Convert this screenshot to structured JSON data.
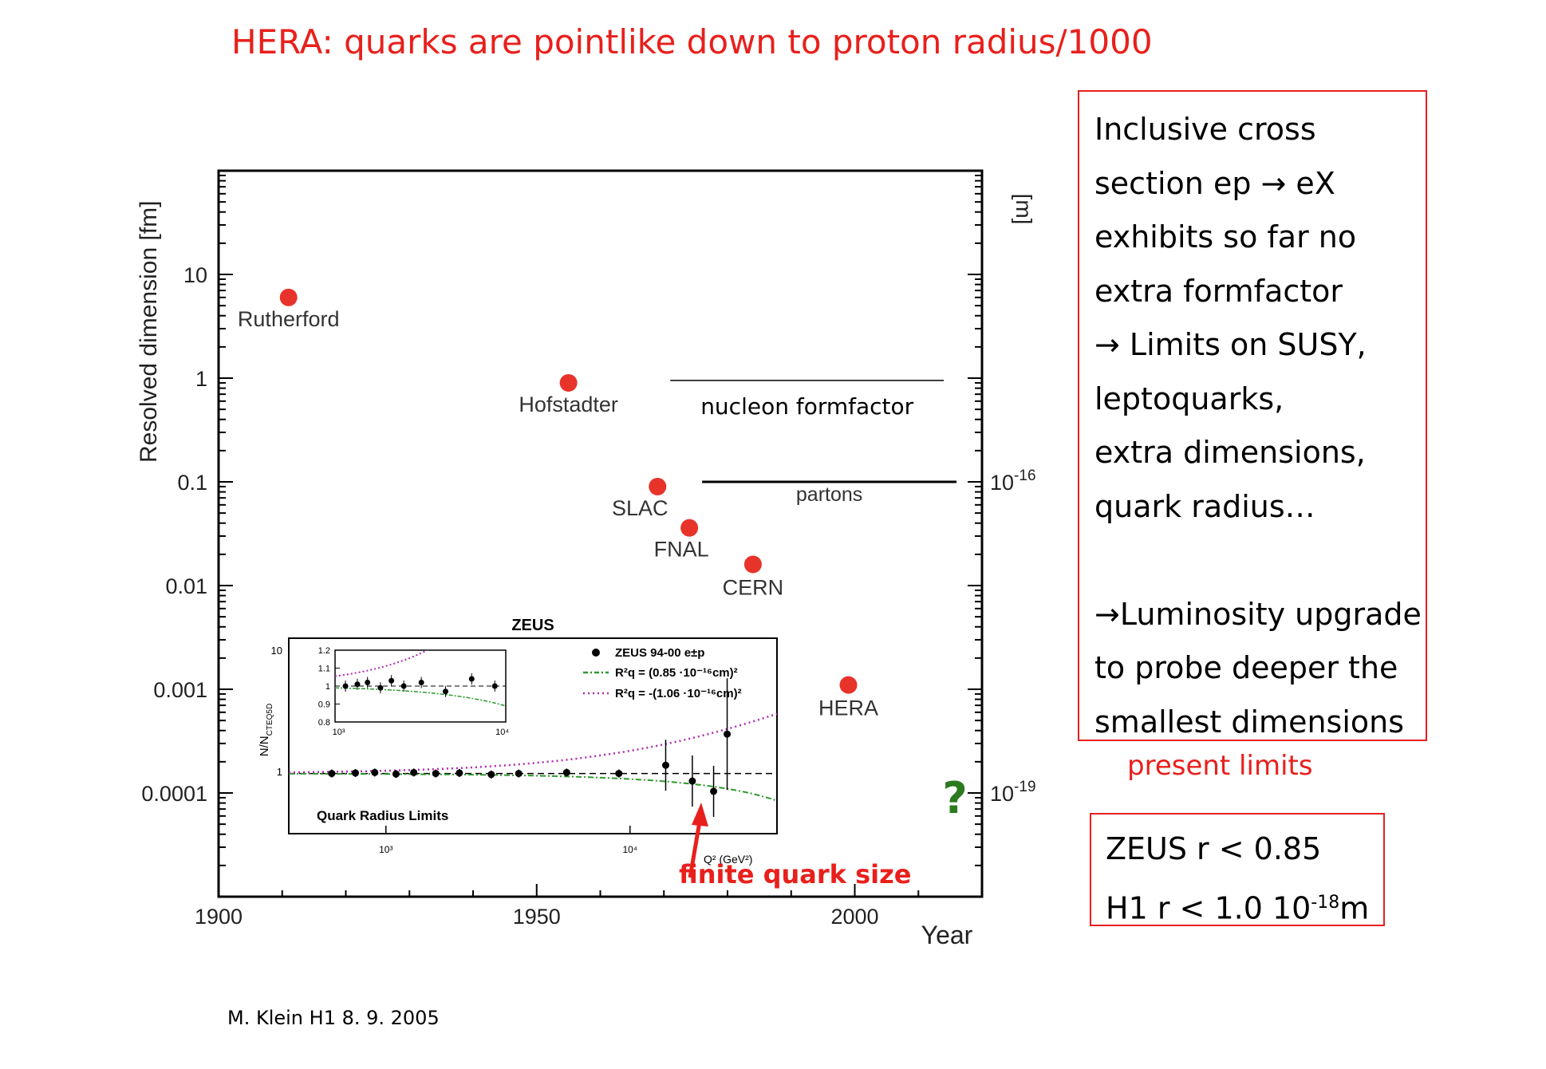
{
  "slide": {
    "title": "HERA: quarks are pointlike  down to  proton radius/1000",
    "footer": "M. Klein  H1 8. 9. 2005"
  },
  "info_box": {
    "lines": [
      "Inclusive cross",
      "section ep → eX",
      "exhibits so far no",
      "extra formfactor",
      "→ Limits on SUSY,",
      "leptoquarks,",
      "extra dimensions,",
      "quark radius…",
      "",
      "→Luminosity upgrade",
      "to probe deeper the",
      "smallest dimensions"
    ]
  },
  "present_limits": {
    "label": "present limits",
    "zeus": "ZEUS  r < 0.85",
    "h1_prefix": "H1   r < 1.0 10",
    "h1_exp": "-18",
    "h1_unit": "m"
  },
  "chart_data": [
    {
      "type": "scatter",
      "xlabel": "Year",
      "ylabel": "Resolved dimension [fm]",
      "y2label": "[m]",
      "xlim": [
        1900,
        2020
      ],
      "ylim": [
        1e-05,
        100
      ],
      "yscale": "log",
      "xticks": [
        {
          "value": 1900,
          "label": "1900"
        },
        {
          "value": 1950,
          "label": "1950"
        },
        {
          "value": 2000,
          "label": "2000"
        }
      ],
      "yticks": [
        {
          "value": 10,
          "label": "10"
        },
        {
          "value": 1,
          "label": "1"
        },
        {
          "value": 0.1,
          "label": "0.1"
        },
        {
          "value": 0.01,
          "label": "0.01"
        },
        {
          "value": 0.001,
          "label": "0.001"
        },
        {
          "value": 0.0001,
          "label": "0.0001"
        }
      ],
      "y2ticks": [
        {
          "value": 0.1,
          "base": "10",
          "exp": "-16"
        },
        {
          "value": 0.0001,
          "base": "10",
          "exp": "-19"
        }
      ],
      "marker_color": "#e8332a",
      "points": [
        {
          "label": "Rutherford",
          "x": 1911,
          "y": 6.0
        },
        {
          "label": "Hofstadter",
          "x": 1955,
          "y": 0.9
        },
        {
          "label": "SLAC",
          "x": 1969,
          "y": 0.09
        },
        {
          "label": "FNAL",
          "x": 1974,
          "y": 0.036
        },
        {
          "label": "CERN",
          "x": 1984,
          "y": 0.016
        },
        {
          "label": "HERA",
          "x": 1999,
          "y": 0.0011
        }
      ],
      "regions": [
        {
          "label": "nucleon formfactor",
          "x_start": 1971,
          "x_end": 2014,
          "y": 0.95
        },
        {
          "label": "partons",
          "x_start": 1976,
          "x_end": 2016,
          "y": 0.1
        }
      ],
      "question_mark": "?",
      "arrow_label": "finite quark size"
    },
    {
      "type": "scatter",
      "title": "ZEUS",
      "ylabel": "N/N",
      "ylabel_sub": "CTEQ5D",
      "xlabel": "Q² (GeV²)",
      "xscale": "log",
      "xlim": [
        400,
        40000
      ],
      "ylim": [
        0.3,
        15
      ],
      "xticks": [
        "10³",
        "10⁴"
      ],
      "ytick_labels": {
        "ten": "10",
        "one": "1"
      },
      "annotation": "Quark Radius Limits",
      "legend": [
        {
          "label": "ZEUS 94-00 e±p",
          "style": "dot"
        },
        {
          "label": "R²q =  (0.85 ·10⁻¹⁶cm)²",
          "style": "dashdot",
          "color": "#2e9a2e"
        },
        {
          "label": "R²q = -(1.06 ·10⁻¹⁶cm)²",
          "style": "dotted",
          "color": "#b02ab0"
        }
      ],
      "series": [
        {
          "name": "ZEUS 94-00 e±p",
          "points": [
            {
              "x": 600,
              "y": 1.0
            },
            {
              "x": 750,
              "y": 1.01
            },
            {
              "x": 900,
              "y": 1.02
            },
            {
              "x": 1100,
              "y": 0.99
            },
            {
              "x": 1300,
              "y": 1.02
            },
            {
              "x": 1600,
              "y": 1.0
            },
            {
              "x": 2000,
              "y": 1.01
            },
            {
              "x": 2700,
              "y": 0.98
            },
            {
              "x": 3500,
              "y": 1.0
            },
            {
              "x": 5500,
              "y": 1.02
            },
            {
              "x": 9000,
              "y": 1.0
            },
            {
              "x": 14000,
              "y": 1.18
            },
            {
              "x": 18000,
              "y": 0.86
            },
            {
              "x": 22000,
              "y": 0.7
            },
            {
              "x": 25000,
              "y": 2.2
            }
          ]
        }
      ]
    },
    {
      "type": "scatter",
      "ylim": [
        0.8,
        1.2
      ],
      "xticks": [
        "10³",
        "10⁴"
      ],
      "yticks": [
        "1.2",
        "1.1",
        "1",
        "0.9",
        "0.8"
      ],
      "series": [
        {
          "name": "ZEUS 94-00 e±p",
          "points": [
            {
              "x": 1100,
              "y": 1.0
            },
            {
              "x": 1300,
              "y": 1.01
            },
            {
              "x": 1500,
              "y": 1.02
            },
            {
              "x": 1800,
              "y": 0.99
            },
            {
              "x": 2100,
              "y": 1.03
            },
            {
              "x": 2500,
              "y": 1.0
            },
            {
              "x": 3200,
              "y": 1.02
            },
            {
              "x": 4500,
              "y": 0.97
            },
            {
              "x": 6500,
              "y": 1.04
            },
            {
              "x": 9000,
              "y": 1.0
            }
          ]
        }
      ]
    }
  ]
}
